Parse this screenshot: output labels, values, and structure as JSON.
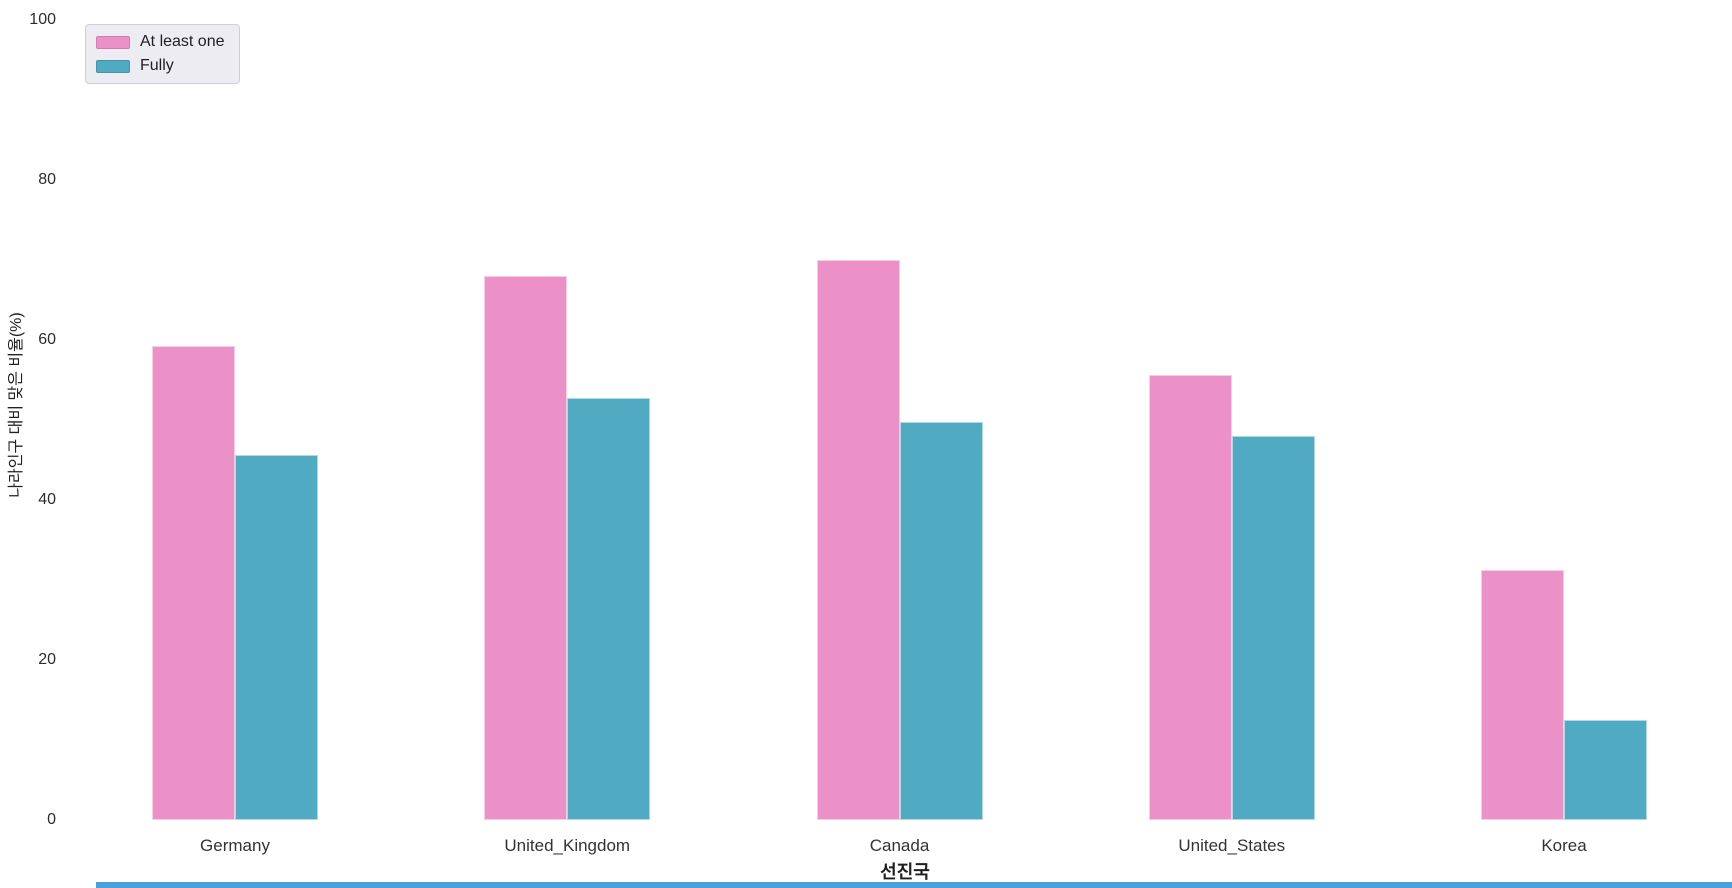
{
  "figure": {
    "xlabel": "선진국",
    "ylabel": "나라인구 대비 맞은 비율(%)"
  },
  "legend": {
    "entries": [
      {
        "label": "At least one",
        "color": "#ec90c8"
      },
      {
        "label": "Fully",
        "color": "#4faac2"
      }
    ]
  },
  "chart_data": {
    "type": "bar",
    "title": "",
    "categories": [
      "Germany",
      "United_Kingdom",
      "Canada",
      "United_States",
      "Korea"
    ],
    "series": [
      {
        "name": "At least one",
        "color": "#ec90c8",
        "values": [
          59.2,
          68.0,
          70.0,
          55.6,
          31.3
        ]
      },
      {
        "name": "Fully",
        "color": "#4faac2",
        "values": [
          45.6,
          52.8,
          49.7,
          48.0,
          12.5
        ]
      }
    ],
    "xlabel": "선진국",
    "ylabel": "나라인구 대비 맞은 비율(%)",
    "ylim": [
      0,
      100
    ],
    "yticks": [
      0,
      20,
      40,
      60,
      80,
      100
    ],
    "grid": false,
    "legend_position": "upper left"
  },
  "misc": {
    "bottom_strip_color": "#4aa0d8"
  }
}
